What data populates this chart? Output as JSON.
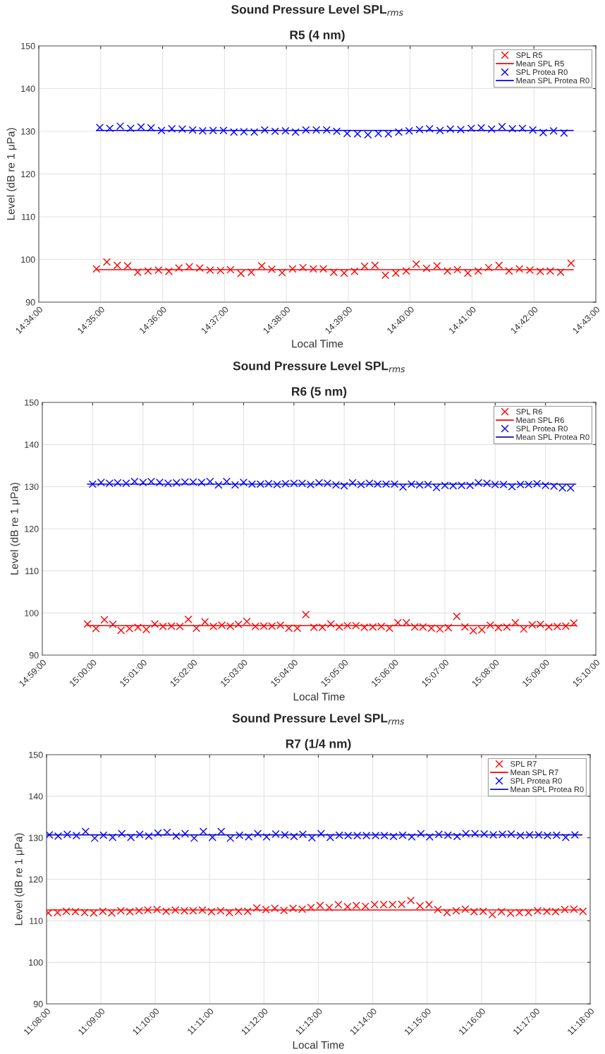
{
  "chart_data": [
    {
      "type": "scatter",
      "title": "Sound Pressure Level SPL$_{rms}$",
      "subtitle": "R5 (4 nm)",
      "xlabel": "Local Time",
      "ylabel": "Level (dB re 1 μPa)",
      "xlim": [
        14.566667,
        14.716667
      ],
      "ylim": [
        90,
        150
      ],
      "yticks": [
        90,
        100,
        110,
        120,
        130,
        140,
        150
      ],
      "xticks": [
        {
          "value": 14.566667,
          "label": "14:34:00"
        },
        {
          "value": 14.583333,
          "label": "14:35:00"
        },
        {
          "value": 14.6,
          "label": "14:36:00"
        },
        {
          "value": 14.616667,
          "label": "14:37:00"
        },
        {
          "value": 14.633333,
          "label": "14:38:00"
        },
        {
          "value": 14.65,
          "label": "14:39:00"
        },
        {
          "value": 14.666667,
          "label": "14:40:00"
        },
        {
          "value": 14.683333,
          "label": "14:41:00"
        },
        {
          "value": 14.7,
          "label": "14:42:00"
        },
        {
          "value": 14.716667,
          "label": "14:43:00"
        }
      ],
      "grid": true,
      "legend": "top right",
      "series": [
        {
          "name": "SPL R5",
          "marker": "cross",
          "color": "#ff0000",
          "x": [
            14.5822,
            14.585,
            14.5878,
            14.5906,
            14.5933,
            14.5961,
            14.5989,
            14.6017,
            14.6044,
            14.6072,
            14.61,
            14.6128,
            14.6156,
            14.6183,
            14.6211,
            14.6239,
            14.6267,
            14.6294,
            14.6322,
            14.635,
            14.6378,
            14.6406,
            14.6433,
            14.6461,
            14.6489,
            14.6517,
            14.6544,
            14.6572,
            14.66,
            14.6628,
            14.6656,
            14.6683,
            14.6711,
            14.6739,
            14.6767,
            14.6794,
            14.6822,
            14.685,
            14.6878,
            14.6906,
            14.6933,
            14.6961,
            14.6989,
            14.7017,
            14.7044,
            14.7072,
            14.71
          ],
          "values": [
            97.8,
            99.4,
            98.6,
            98.5,
            97.0,
            97.3,
            97.5,
            97.2,
            98.0,
            98.3,
            98.0,
            97.5,
            97.4,
            97.6,
            96.7,
            97.0,
            98.5,
            97.7,
            96.9,
            97.8,
            98.1,
            97.8,
            97.8,
            97.0,
            96.8,
            97.2,
            98.4,
            98.6,
            96.3,
            96.8,
            97.3,
            98.9,
            97.9,
            98.5,
            97.3,
            97.6,
            96.8,
            97.3,
            98.1,
            98.6,
            97.3,
            97.8,
            97.5,
            97.2,
            97.3,
            97.0,
            99.1
          ]
        },
        {
          "name": "Mean SPL R5",
          "type": "line",
          "color": "#ff0000",
          "x": [
            14.5822,
            14.7106
          ],
          "values": [
            97.6,
            97.6
          ]
        },
        {
          "name": "SPL Protea R0",
          "marker": "cross",
          "color": "#0000ff",
          "x": [
            14.5831,
            14.5858,
            14.5886,
            14.5914,
            14.5942,
            14.5969,
            14.5997,
            14.6025,
            14.6053,
            14.6081,
            14.6108,
            14.6136,
            14.6164,
            14.6192,
            14.6219,
            14.6247,
            14.6275,
            14.6303,
            14.6331,
            14.6358,
            14.6386,
            14.6414,
            14.6442,
            14.6469,
            14.6497,
            14.6525,
            14.6553,
            14.6581,
            14.6608,
            14.6636,
            14.6664,
            14.6692,
            14.6719,
            14.6747,
            14.6775,
            14.6803,
            14.6831,
            14.6858,
            14.6886,
            14.6914,
            14.6942,
            14.6969,
            14.6997,
            14.7025,
            14.7053,
            14.7081
          ],
          "values": [
            130.9,
            130.7,
            131.2,
            130.7,
            131.0,
            130.8,
            130.2,
            130.6,
            130.5,
            130.3,
            130.1,
            130.2,
            130.2,
            129.8,
            129.9,
            129.8,
            130.3,
            130.0,
            130.1,
            129.8,
            130.3,
            130.3,
            130.3,
            130.0,
            129.5,
            129.4,
            129.2,
            129.5,
            129.4,
            129.8,
            130.1,
            130.4,
            130.6,
            130.2,
            130.5,
            130.4,
            130.7,
            130.8,
            130.5,
            131.1,
            130.6,
            130.7,
            130.3,
            129.7,
            130.1,
            129.6
          ]
        },
        {
          "name": "Mean SPL Protea R0",
          "type": "line",
          "color": "#0000ff",
          "x": [
            14.5822,
            14.7106
          ],
          "values": [
            130.2,
            130.2
          ]
        }
      ]
    },
    {
      "type": "scatter",
      "title": "Sound Pressure Level SPL$_{rms}$",
      "subtitle": "R6 (5 nm)",
      "xlabel": "Local Time",
      "ylabel": "Level (dB re 1 μPa)",
      "xlim": [
        14.983333,
        15.166667
      ],
      "ylim": [
        90,
        150
      ],
      "yticks": [
        90,
        100,
        110,
        120,
        130,
        140,
        150
      ],
      "xticks": [
        {
          "value": 14.983333,
          "label": "14:59:00"
        },
        {
          "value": 15.0,
          "label": "15:00:00"
        },
        {
          "value": 15.016667,
          "label": "15:01:00"
        },
        {
          "value": 15.033333,
          "label": "15:02:00"
        },
        {
          "value": 15.05,
          "label": "15:03:00"
        },
        {
          "value": 15.066667,
          "label": "15:04:00"
        },
        {
          "value": 15.083333,
          "label": "15:05:00"
        },
        {
          "value": 15.1,
          "label": "15:06:00"
        },
        {
          "value": 15.116667,
          "label": "15:07:00"
        },
        {
          "value": 15.133333,
          "label": "15:08:00"
        },
        {
          "value": 15.15,
          "label": "15:09:00"
        },
        {
          "value": 15.166667,
          "label": "15:10:00"
        }
      ],
      "grid": true,
      "legend": "top right",
      "series": [
        {
          "name": "SPL R6",
          "marker": "cross",
          "color": "#ff0000",
          "x": [
            14.9983,
            15.0011,
            15.0039,
            15.0067,
            15.0094,
            15.0122,
            15.015,
            15.0178,
            15.0206,
            15.0233,
            15.0261,
            15.0289,
            15.0317,
            15.0344,
            15.0372,
            15.04,
            15.0428,
            15.0456,
            15.0483,
            15.0511,
            15.0539,
            15.0567,
            15.0594,
            15.0622,
            15.065,
            15.0678,
            15.0706,
            15.0733,
            15.0761,
            15.0789,
            15.0817,
            15.0844,
            15.0872,
            15.09,
            15.0928,
            15.0956,
            15.0983,
            15.1011,
            15.1039,
            15.1067,
            15.1094,
            15.1122,
            15.115,
            15.1178,
            15.1206,
            15.1233,
            15.1261,
            15.1289,
            15.1317,
            15.1344,
            15.1372,
            15.14,
            15.1428,
            15.1456,
            15.1483,
            15.1511,
            15.1539,
            15.1567,
            15.1594
          ],
          "values": [
            97.4,
            96.3,
            98.4,
            97.3,
            95.9,
            96.3,
            96.6,
            96.1,
            97.4,
            96.8,
            96.9,
            96.8,
            98.5,
            96.4,
            97.9,
            96.8,
            97.1,
            96.9,
            97.3,
            98.0,
            96.8,
            96.9,
            96.9,
            97.1,
            96.4,
            96.4,
            99.6,
            96.6,
            96.6,
            97.4,
            96.7,
            97.0,
            97.0,
            96.6,
            96.7,
            96.8,
            96.4,
            97.7,
            97.7,
            96.7,
            96.7,
            96.4,
            96.2,
            96.5,
            99.2,
            96.7,
            95.8,
            96.0,
            97.1,
            96.5,
            96.7,
            97.7,
            96.2,
            97.2,
            97.3,
            96.7,
            96.8,
            96.9,
            97.6
          ]
        },
        {
          "name": "Mean SPL R6",
          "type": "line",
          "color": "#ff0000",
          "x": [
            14.9983,
            15.16
          ],
          "values": [
            97.0,
            97.0
          ]
        },
        {
          "name": "SPL Protea R0",
          "marker": "cross",
          "color": "#0000ff",
          "x": [
            15.0,
            15.0028,
            15.0056,
            15.0083,
            15.0111,
            15.0139,
            15.0167,
            15.0194,
            15.0222,
            15.025,
            15.0278,
            15.0306,
            15.0333,
            15.0361,
            15.0389,
            15.0417,
            15.0444,
            15.0472,
            15.05,
            15.0528,
            15.0556,
            15.0583,
            15.0611,
            15.0639,
            15.0667,
            15.0694,
            15.0722,
            15.075,
            15.0778,
            15.0806,
            15.0833,
            15.0861,
            15.0889,
            15.0917,
            15.0944,
            15.0972,
            15.1,
            15.1028,
            15.1056,
            15.1083,
            15.1111,
            15.1139,
            15.1167,
            15.1194,
            15.1222,
            15.125,
            15.1278,
            15.1306,
            15.1333,
            15.1361,
            15.1389,
            15.1417,
            15.1444,
            15.1472,
            15.15,
            15.1528,
            15.1556,
            15.1583
          ],
          "values": [
            130.6,
            131.0,
            130.8,
            130.9,
            130.8,
            131.2,
            131.0,
            131.2,
            131.0,
            130.8,
            130.9,
            131.1,
            131.1,
            131.0,
            131.2,
            130.4,
            131.2,
            130.4,
            131.0,
            130.6,
            130.6,
            130.7,
            130.5,
            130.7,
            130.8,
            130.8,
            130.5,
            130.9,
            130.8,
            130.4,
            130.2,
            130.9,
            130.5,
            130.8,
            130.6,
            130.6,
            130.6,
            129.9,
            130.6,
            130.4,
            130.5,
            129.8,
            130.3,
            130.2,
            130.3,
            130.3,
            130.9,
            130.8,
            130.5,
            130.5,
            130.0,
            130.5,
            130.5,
            130.7,
            130.3,
            130.1,
            129.7,
            129.7
          ]
        },
        {
          "name": "Mean SPL Protea R0",
          "type": "line",
          "color": "#1010b0",
          "x": [
            14.9983,
            15.16
          ],
          "values": [
            130.6,
            130.6
          ]
        }
      ]
    },
    {
      "type": "scatter",
      "title": "Sound Pressure Level SPL$_{rms}$",
      "subtitle": "R7 (1/4 nm)",
      "xlabel": "Local Time",
      "ylabel": "Level (dB re 1 μPa)",
      "xlim": [
        11.133333,
        11.3
      ],
      "ylim": [
        90,
        150
      ],
      "yticks": [
        90,
        100,
        110,
        120,
        130,
        140,
        150
      ],
      "xticks": [
        {
          "value": 11.133333,
          "label": "11:08:00"
        },
        {
          "value": 11.15,
          "label": "11:09:00"
        },
        {
          "value": 11.166667,
          "label": "11:10:00"
        },
        {
          "value": 11.183333,
          "label": "11:11:00"
        },
        {
          "value": 11.2,
          "label": "11:12:00"
        },
        {
          "value": 11.216667,
          "label": "11:13:00"
        },
        {
          "value": 11.233333,
          "label": "11:14:00"
        },
        {
          "value": 11.25,
          "label": "11:15:00"
        },
        {
          "value": 11.266667,
          "label": "11:16:00"
        },
        {
          "value": 11.283333,
          "label": "11:17:00"
        },
        {
          "value": 11.3,
          "label": "11:18:00"
        }
      ],
      "grid": true,
      "legend": "top right",
      "series": [
        {
          "name": "SPL R7",
          "marker": "cross",
          "color": "#ff0000",
          "x": [
            11.1339,
            11.1367,
            11.1394,
            11.1422,
            11.145,
            11.1478,
            11.1506,
            11.1533,
            11.1561,
            11.1589,
            11.1617,
            11.1644,
            11.1672,
            11.17,
            11.1728,
            11.1756,
            11.1783,
            11.1811,
            11.1839,
            11.1867,
            11.1894,
            11.1922,
            11.195,
            11.1978,
            11.2006,
            11.2033,
            11.2061,
            11.2089,
            11.2117,
            11.2144,
            11.2172,
            11.22,
            11.2228,
            11.2256,
            11.2283,
            11.2311,
            11.2339,
            11.2367,
            11.2394,
            11.2422,
            11.245,
            11.2478,
            11.2506,
            11.2533,
            11.2561,
            11.2589,
            11.2617,
            11.2644,
            11.2672,
            11.27,
            11.2728,
            11.2756,
            11.2783,
            11.2811,
            11.2839,
            11.2867,
            11.2894,
            11.2922,
            11.295,
            11.2978
          ],
          "values": [
            111.9,
            112.0,
            112.3,
            112.2,
            112.0,
            111.9,
            112.3,
            111.9,
            112.4,
            112.2,
            112.4,
            112.6,
            112.7,
            112.3,
            112.6,
            112.4,
            112.4,
            112.6,
            112.2,
            112.4,
            112.0,
            112.3,
            112.3,
            113.1,
            112.7,
            113.0,
            112.5,
            113.0,
            112.8,
            113.2,
            113.7,
            113.2,
            113.9,
            113.4,
            113.7,
            113.5,
            113.9,
            113.9,
            113.9,
            114.0,
            114.9,
            113.6,
            113.9,
            112.7,
            112.0,
            112.4,
            112.8,
            112.2,
            112.3,
            111.5,
            112.2,
            111.8,
            112.0,
            112.0,
            112.4,
            112.3,
            112.2,
            112.7,
            112.8,
            112.3
          ]
        },
        {
          "name": "Mean SPL R7",
          "type": "line",
          "color": "#ff0000",
          "x": [
            11.1334,
            11.2975
          ],
          "values": [
            112.6,
            112.6
          ]
        },
        {
          "name": "SPL Protea R0",
          "marker": "cross",
          "color": "#0000ff",
          "x": [
            11.1342,
            11.1369,
            11.1397,
            11.1425,
            11.1453,
            11.1481,
            11.1508,
            11.1536,
            11.1564,
            11.1592,
            11.1619,
            11.1647,
            11.1675,
            11.1703,
            11.1731,
            11.1758,
            11.1786,
            11.1814,
            11.1842,
            11.1869,
            11.1897,
            11.1925,
            11.1953,
            11.1981,
            11.2008,
            11.2036,
            11.2064,
            11.2092,
            11.2119,
            11.2147,
            11.2175,
            11.2203,
            11.2231,
            11.2258,
            11.2286,
            11.2314,
            11.2342,
            11.2369,
            11.2397,
            11.2425,
            11.2453,
            11.2481,
            11.2508,
            11.2536,
            11.2564,
            11.2592,
            11.2619,
            11.2647,
            11.2675,
            11.2703,
            11.2731,
            11.2758,
            11.2786,
            11.2814,
            11.2842,
            11.2869,
            11.2897,
            11.2925,
            11.2953
          ],
          "values": [
            130.7,
            130.4,
            130.8,
            130.5,
            131.5,
            129.9,
            130.6,
            130.1,
            131.0,
            130.1,
            130.8,
            130.4,
            131.1,
            131.3,
            130.4,
            131.0,
            129.9,
            131.5,
            130.1,
            131.5,
            129.9,
            130.6,
            130.2,
            131.0,
            130.2,
            130.9,
            130.7,
            130.3,
            130.8,
            130.0,
            131.0,
            130.1,
            130.6,
            130.5,
            130.5,
            130.5,
            130.5,
            130.5,
            130.3,
            130.6,
            130.2,
            131.0,
            130.2,
            130.8,
            130.6,
            130.3,
            131.0,
            131.0,
            130.9,
            130.7,
            130.8,
            130.9,
            130.5,
            130.7,
            130.7,
            130.5,
            130.6,
            130.1,
            130.7
          ]
        },
        {
          "name": "Mean SPL Protea R0",
          "type": "line",
          "color": "#1010b0",
          "x": [
            11.1334,
            11.2975
          ],
          "values": [
            130.7,
            130.7
          ]
        }
      ]
    }
  ]
}
